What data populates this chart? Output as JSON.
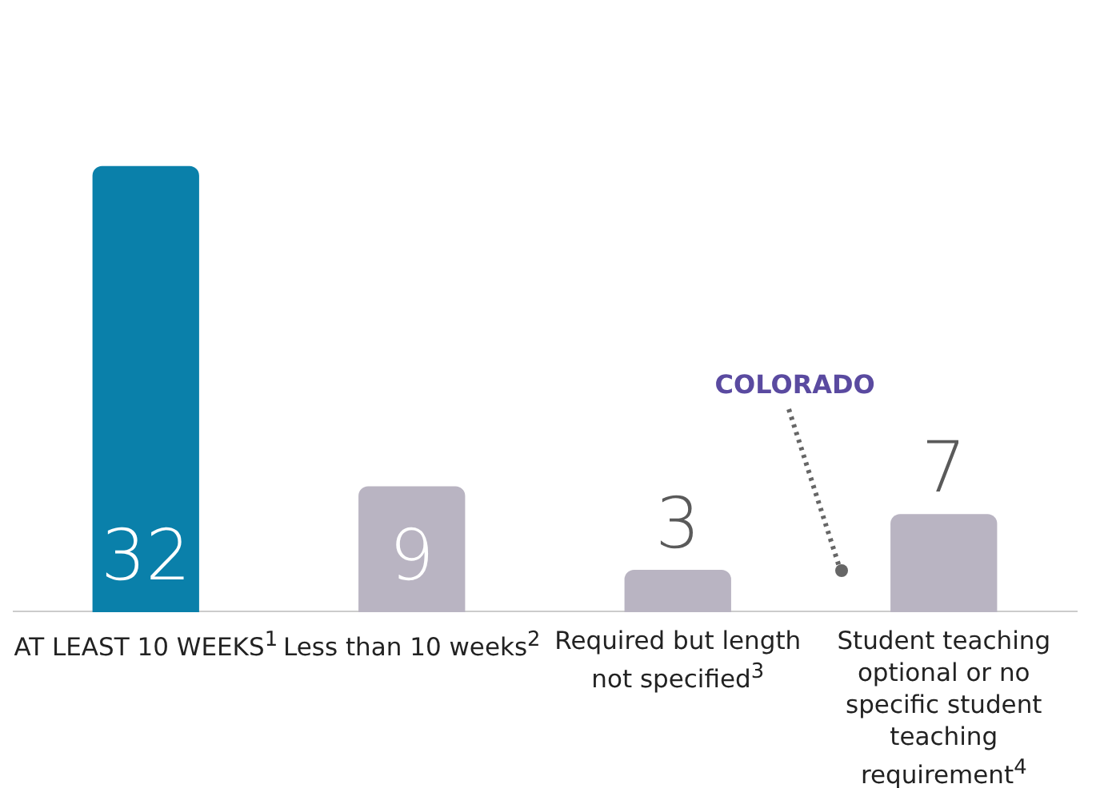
{
  "chart_data": {
    "type": "bar",
    "categories": [
      "AT LEAST 10 WEEKS$^{1}$",
      "Less than 10 weeks$^{2}$",
      "Required but length not specified$^{3}$",
      "Student teaching optional or no specific student teaching requirement$^{4}$"
    ],
    "values": [
      32,
      9,
      3,
      7
    ],
    "colors": [
      "#0a80aa",
      "#b9b4c2",
      "#b9b4c2",
      "#b9b4c2"
    ],
    "data_labels": true,
    "annotations": [
      "COLORADO"
    ],
    "grid": false,
    "legend": false
  }
}
